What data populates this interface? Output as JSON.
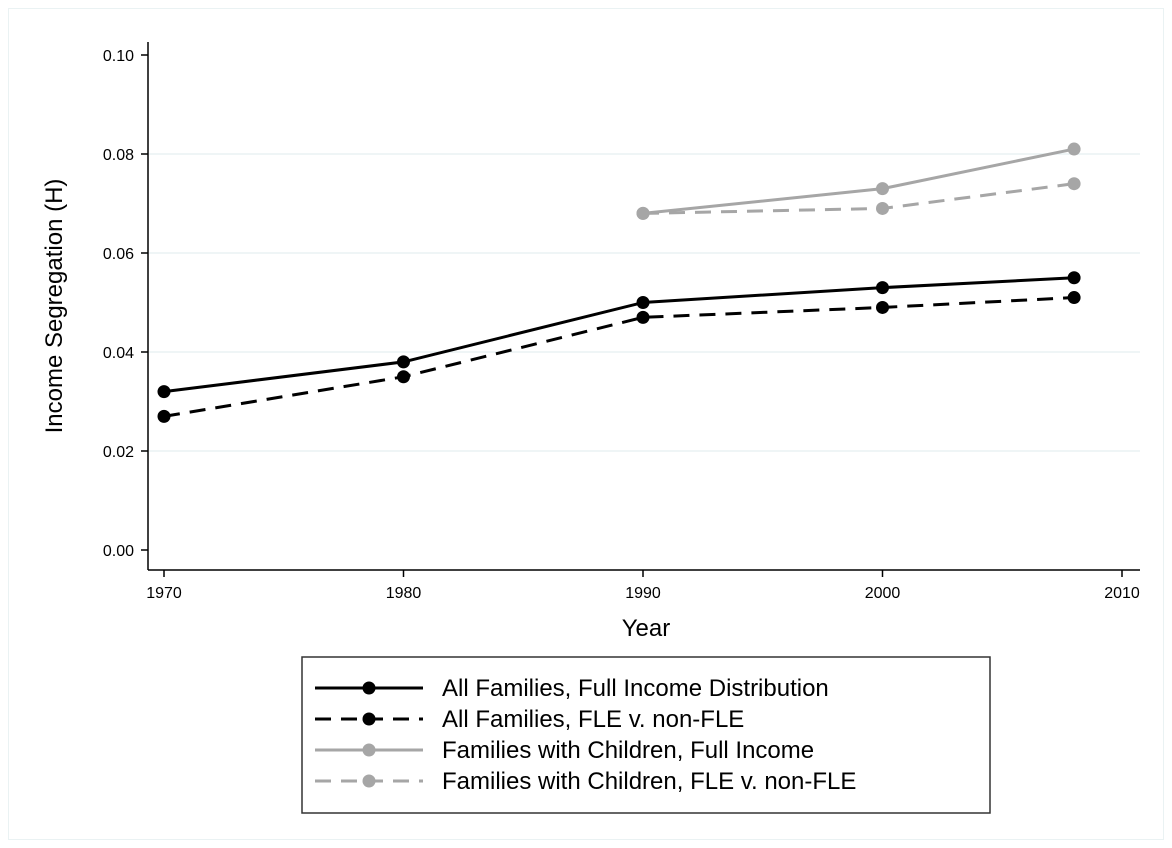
{
  "chart_data": {
    "type": "line",
    "title": "",
    "xlabel": "Year",
    "ylabel": "Income Segregation (H)",
    "xlim": [
      1970,
      2010
    ],
    "ylim": [
      0.0,
      0.1
    ],
    "xticks": [
      1970,
      1980,
      1990,
      2000,
      2010
    ],
    "xtick_labels": [
      "1970",
      "1980",
      "1990",
      "2000",
      "2010"
    ],
    "yticks": [
      0.0,
      0.02,
      0.04,
      0.06,
      0.08,
      0.1
    ],
    "ytick_labels": [
      "0.00",
      "0.02",
      "0.04",
      "0.06",
      "0.08",
      "0.10"
    ],
    "grid": "horizontal",
    "legend_position": "bottom",
    "colors": {
      "black": "#000000",
      "gray": "#a6a6a6",
      "grid": "#eaf2f3"
    },
    "series": [
      {
        "name": "All Families, Full Income Distribution",
        "color": "#000000",
        "dash": "solid",
        "points": [
          [
            1970,
            0.032
          ],
          [
            1980,
            0.038
          ],
          [
            1990,
            0.05
          ],
          [
            2000,
            0.053
          ],
          [
            2008,
            0.055
          ]
        ]
      },
      {
        "name": "All Families, FLE v. non-FLE",
        "color": "#000000",
        "dash": "dashed",
        "points": [
          [
            1970,
            0.027
          ],
          [
            1980,
            0.035
          ],
          [
            1990,
            0.047
          ],
          [
            2000,
            0.049
          ],
          [
            2008,
            0.051
          ]
        ]
      },
      {
        "name": "Families with Children, Full Income",
        "color": "#a6a6a6",
        "dash": "solid",
        "points": [
          [
            1990,
            0.068
          ],
          [
            2000,
            0.073
          ],
          [
            2008,
            0.081
          ]
        ]
      },
      {
        "name": "Families with Children, FLE v. non-FLE",
        "color": "#a6a6a6",
        "dash": "dashed",
        "points": [
          [
            1990,
            0.068
          ],
          [
            2000,
            0.069
          ],
          [
            2008,
            0.074
          ]
        ]
      }
    ]
  }
}
